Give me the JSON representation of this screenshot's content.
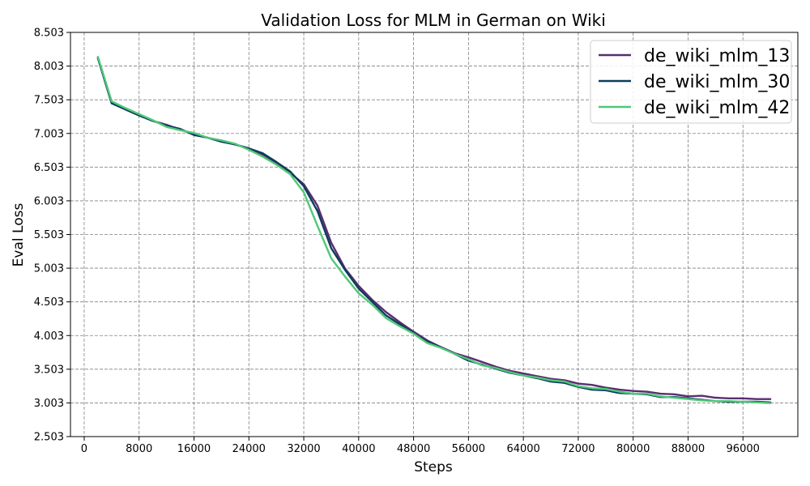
{
  "chart_data": {
    "type": "line",
    "title": "Validation Loss for MLM in German on Wiki",
    "xlabel": "Steps",
    "ylabel": "Eval Loss",
    "xlim": [
      -2000,
      104000
    ],
    "ylim": [
      2.503,
      8.503
    ],
    "xticks": [
      0,
      8000,
      16000,
      24000,
      32000,
      40000,
      48000,
      56000,
      64000,
      72000,
      80000,
      88000,
      96000
    ],
    "xtick_labels": [
      "0",
      "8000",
      "16000",
      "24000",
      "32000",
      "40000",
      "48000",
      "56000",
      "64000",
      "72000",
      "80000",
      "88000",
      "96000"
    ],
    "yticks": [
      2.503,
      3.003,
      3.503,
      4.003,
      4.503,
      5.003,
      5.503,
      6.003,
      6.503,
      7.003,
      7.503,
      8.003,
      8.503
    ],
    "ytick_labels": [
      "2.503",
      "3.003",
      "3.503",
      "4.003",
      "4.503",
      "5.003",
      "5.503",
      "6.003",
      "6.503",
      "7.003",
      "7.503",
      "8.003",
      "8.503"
    ],
    "grid": true,
    "legend_position": "top-right",
    "x": [
      2000,
      4000,
      6000,
      8000,
      10000,
      12000,
      14000,
      16000,
      18000,
      20000,
      22000,
      24000,
      26000,
      28000,
      30000,
      32000,
      34000,
      36000,
      38000,
      40000,
      42000,
      44000,
      46000,
      48000,
      50000,
      52000,
      54000,
      56000,
      58000,
      60000,
      62000,
      64000,
      66000,
      68000,
      70000,
      72000,
      74000,
      76000,
      78000,
      80000,
      82000,
      84000,
      86000,
      88000,
      90000,
      92000,
      94000,
      96000,
      98000,
      100000
    ],
    "series": [
      {
        "name": "de_wiki_mlm_13",
        "color": "#5b2c6f",
        "values": [
          8.13,
          7.46,
          7.36,
          7.27,
          7.19,
          7.13,
          7.06,
          6.99,
          6.94,
          6.89,
          6.84,
          6.78,
          6.69,
          6.56,
          6.42,
          6.25,
          5.93,
          5.38,
          5.0,
          4.74,
          4.53,
          4.35,
          4.2,
          4.06,
          3.93,
          3.83,
          3.74,
          3.68,
          3.61,
          3.54,
          3.48,
          3.44,
          3.4,
          3.36,
          3.34,
          3.29,
          3.27,
          3.23,
          3.2,
          3.18,
          3.17,
          3.14,
          3.13,
          3.1,
          3.11,
          3.08,
          3.07,
          3.07,
          3.06,
          3.06
        ]
      },
      {
        "name": "de_wiki_mlm_30",
        "color": "#0b3d5c",
        "values": [
          8.12,
          7.45,
          7.36,
          7.27,
          7.19,
          7.12,
          7.07,
          6.98,
          6.94,
          6.88,
          6.84,
          6.78,
          6.71,
          6.58,
          6.44,
          6.22,
          5.85,
          5.3,
          4.98,
          4.7,
          4.5,
          4.3,
          4.17,
          4.04,
          3.91,
          3.83,
          3.73,
          3.63,
          3.57,
          3.51,
          3.45,
          3.41,
          3.37,
          3.32,
          3.3,
          3.24,
          3.2,
          3.19,
          3.15,
          3.14,
          3.13,
          3.09,
          3.09,
          3.07,
          3.05,
          3.03,
          3.02,
          3.02,
          3.02,
          3.01
        ]
      },
      {
        "name": "de_wiki_mlm_42",
        "color": "#50c878",
        "values": [
          8.14,
          7.48,
          7.38,
          7.29,
          7.2,
          7.1,
          7.05,
          7.01,
          6.94,
          6.9,
          6.85,
          6.76,
          6.66,
          6.54,
          6.4,
          6.13,
          5.63,
          5.15,
          4.88,
          4.63,
          4.46,
          4.26,
          4.14,
          4.03,
          3.89,
          3.82,
          3.73,
          3.65,
          3.56,
          3.52,
          3.46,
          3.41,
          3.38,
          3.34,
          3.32,
          3.25,
          3.22,
          3.21,
          3.17,
          3.14,
          3.14,
          3.1,
          3.08,
          3.06,
          3.04,
          3.03,
          3.03,
          3.02,
          3.01,
          3.0
        ]
      }
    ]
  }
}
